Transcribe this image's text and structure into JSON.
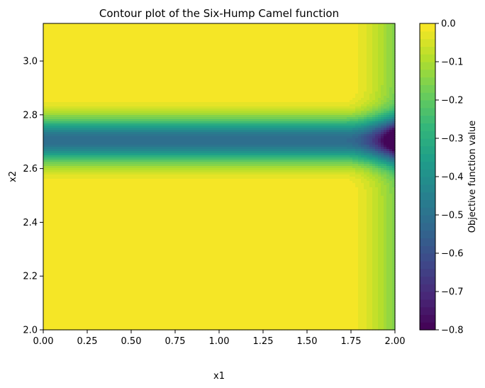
{
  "chart_data": {
    "type": "heatmap",
    "title": "Contour plot of the Six-Hump Camel function",
    "xlabel": "x1",
    "ylabel": "x2",
    "xlim": [
      0.0,
      2.0
    ],
    "ylim": [
      2.0,
      3.14
    ],
    "x_ticks": [
      "0.00",
      "0.25",
      "0.50",
      "0.75",
      "1.00",
      "1.25",
      "1.50",
      "1.75",
      "2.00"
    ],
    "y_ticks": [
      "2.0",
      "2.2",
      "2.4",
      "2.6",
      "2.8",
      "3.0"
    ],
    "colorbar": {
      "label": "Objective function value",
      "range": [
        -0.8,
        0.0
      ],
      "ticks": [
        "0.0",
        "−0.1",
        "−0.2",
        "−0.3",
        "−0.4",
        "−0.5",
        "−0.6",
        "−0.7",
        "−0.8"
      ],
      "colormap": "viridis"
    },
    "surface": {
      "trough_center_x2": 2.705,
      "trough_halfwidth_x2": 0.08,
      "trough_depth": -0.52,
      "edge_onset_x1": 1.72,
      "minimum": {
        "x1": 2.0,
        "x2": 2.705,
        "value": -0.8
      }
    },
    "grid": false,
    "colors": {
      "viridis": [
        "#440154",
        "#482878",
        "#3e4989",
        "#31688e",
        "#26828e",
        "#1f9e89",
        "#35b779",
        "#6ece58",
        "#b5de2b",
        "#fde725"
      ]
    }
  }
}
